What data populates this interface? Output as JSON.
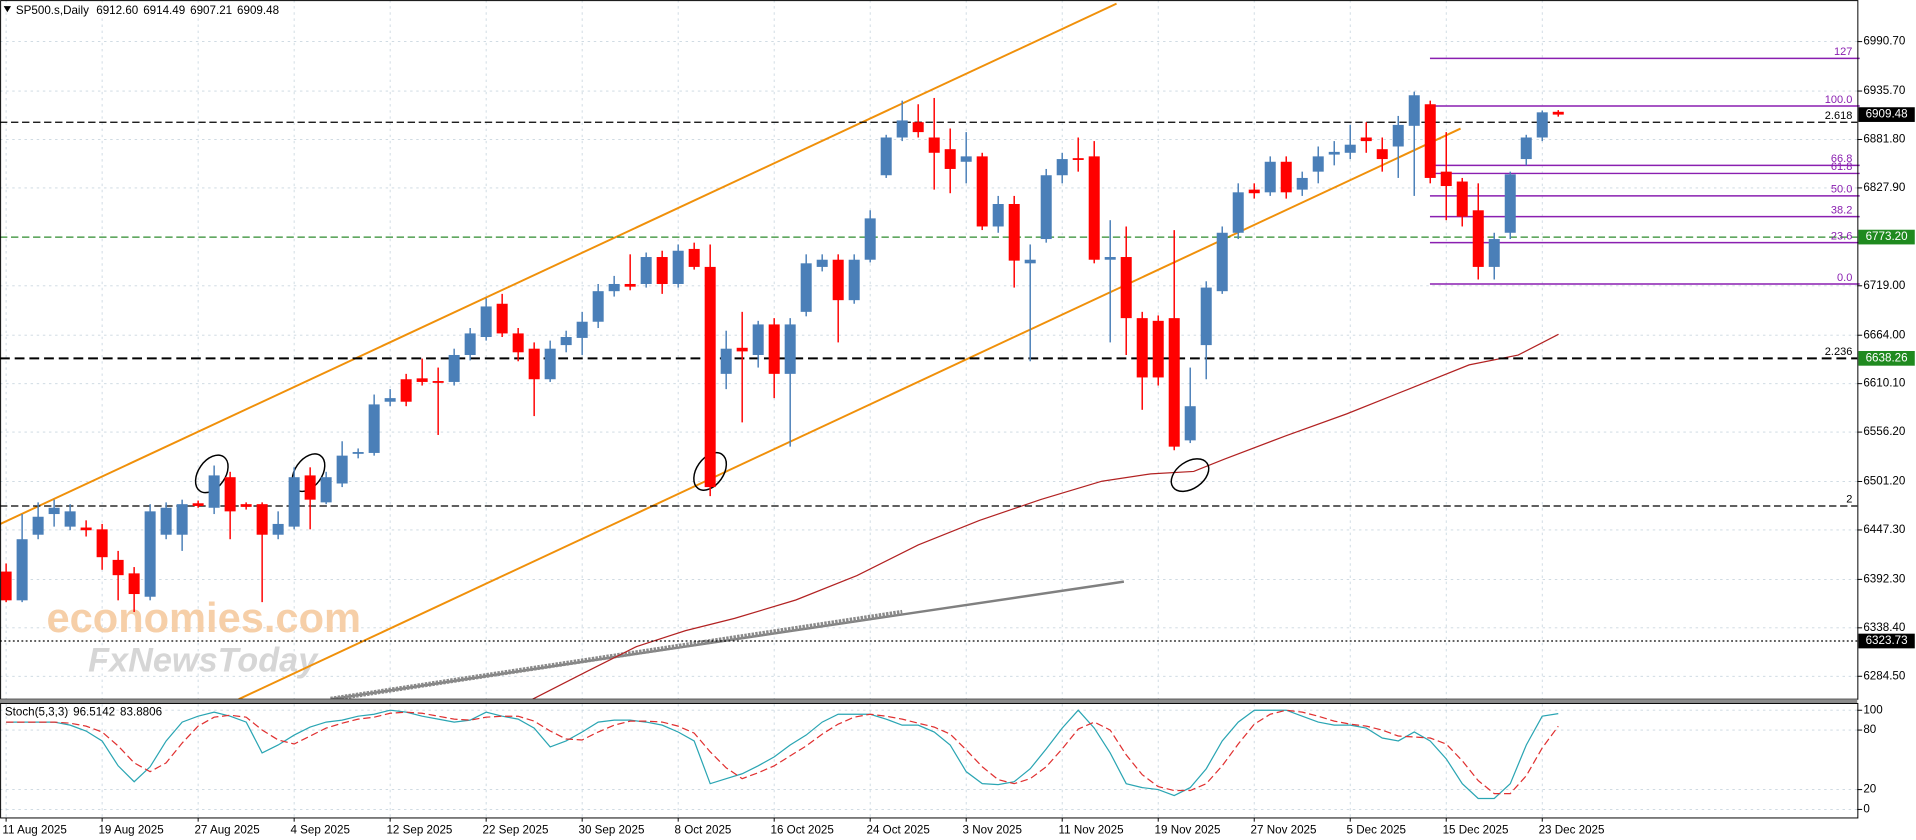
{
  "chart_data": {
    "type": "candlestick",
    "title": "SP500.s,Daily",
    "header": [
      "6912.60",
      "6914.49",
      "6907.21",
      "6909.48"
    ],
    "up_color": "#4a7fb8",
    "down_color": "#ff0000",
    "grid": true,
    "categories": [
      "11 Aug 2025",
      null,
      null,
      null,
      null,
      null,
      "19 Aug 2025",
      null,
      null,
      null,
      null,
      null,
      "27 Aug 2025",
      null,
      null,
      null,
      null,
      null,
      "4 Sep 2025",
      null,
      null,
      null,
      null,
      null,
      "12 Sep 2025",
      null,
      null,
      null,
      null,
      null,
      "22 Sep 2025",
      null,
      null,
      null,
      null,
      null,
      "30 Sep 2025",
      null,
      null,
      null,
      null,
      null,
      "8 Oct 2025",
      null,
      null,
      null,
      null,
      null,
      "16 Oct 2025",
      null,
      null,
      null,
      null,
      null,
      "24 Oct 2025",
      null,
      null,
      null,
      null,
      null,
      "3 Nov 2025",
      null,
      null,
      null,
      null,
      null,
      "11 Nov 2025",
      null,
      null,
      null,
      null,
      null,
      "19 Nov 2025",
      null,
      null,
      null,
      null,
      null,
      "27 Nov 2025",
      null,
      null,
      null,
      null,
      null,
      "5 Dec 2025",
      null,
      null,
      null,
      null,
      null,
      "15 Dec 2025",
      null,
      null,
      null,
      null,
      null,
      "23 Dec 2025",
      null
    ],
    "open": [
      6401,
      6369,
      6442,
      6465,
      6451,
      6450,
      6448,
      6414,
      6399,
      6373,
      6442,
      6442,
      6477,
      6472,
      6506,
      6476,
      6476,
      6442,
      6451,
      6508,
      6478,
      6499,
      6532,
      6533,
      6590,
      6615,
      6616,
      6613,
      6612,
      6642,
      6662,
      6699,
      6666,
      6649,
      6615,
      6653,
      6661,
      6679,
      6713,
      6721,
      6721,
      6751,
      6721,
      6760,
      6740,
      6621,
      6650,
      6642,
      6676,
      6621,
      6690,
      6740,
      6748,
      6703,
      6748,
      6842,
      6884,
      6901,
      6884,
      6871,
      6857,
      6863,
      6785,
      6810,
      6744,
      6771,
      6842,
      6861,
      6863,
      6748,
      6751,
      6683,
      6680,
      6683,
      6547,
      6653,
      6713,
      6778,
      6826,
      6823,
      6857,
      6826,
      6846,
      6865,
      6867,
      6884,
      6871,
      6874,
      6897,
      6921,
      6846,
      6835,
      6803,
      6740,
      6778,
      6860,
      6884,
      6912.6
    ],
    "high": [
      6410,
      6465,
      6478,
      6481,
      6476,
      6458,
      6454,
      6424,
      6406,
      6476,
      6478,
      6481,
      6480,
      6519,
      6512,
      6478,
      6478,
      6468,
      6517,
      6517,
      6512,
      6546,
      6538,
      6598,
      6604,
      6621,
      6638,
      6628,
      6649,
      6672,
      6705,
      6710,
      6672,
      6656,
      6658,
      6669,
      6690,
      6721,
      6730,
      6754,
      6756,
      6758,
      6765,
      6767,
      6765,
      6669,
      6690,
      6680,
      6683,
      6683,
      6754,
      6754,
      6754,
      6754,
      6803,
      6887,
      6925,
      6921,
      6928,
      6894,
      6890,
      6867,
      6819,
      6819,
      6765,
      6849,
      6867,
      6884,
      6880,
      6792,
      6785,
      6690,
      6686,
      6781,
      6628,
      6724,
      6785,
      6833,
      6833,
      6863,
      6863,
      6846,
      6874,
      6880,
      6898,
      6901,
      6884,
      6908,
      6935,
      6925,
      6890,
      6839,
      6833,
      6778,
      6846,
      6887,
      6914,
      6914.49
    ],
    "low": [
      6367,
      6367,
      6437,
      6451,
      6447,
      6440,
      6403,
      6369,
      6356,
      6369,
      6437,
      6424,
      6472,
      6465,
      6437,
      6470,
      6367,
      6437,
      6448,
      6448,
      6476,
      6495,
      6527,
      6530,
      6585,
      6585,
      6608,
      6553,
      6608,
      6636,
      6658,
      6662,
      6635,
      6574,
      6612,
      6645,
      6642,
      6672,
      6707,
      6714,
      6717,
      6710,
      6717,
      6737,
      6485,
      6604,
      6567,
      6628,
      6594,
      6540,
      6685,
      6735,
      6656,
      6699,
      6745,
      6839,
      6880,
      6884,
      6826,
      6822,
      6833,
      6781,
      6778,
      6717,
      6635,
      6767,
      6833,
      6846,
      6744,
      6656,
      6642,
      6581,
      6608,
      6536,
      6544,
      6615,
      6710,
      6771,
      6816,
      6819,
      6816,
      6819,
      6833,
      6853,
      6860,
      6867,
      6846,
      6839,
      6819,
      6833,
      6792,
      6785,
      6726,
      6726,
      6771,
      6853,
      6880,
      6907.21
    ],
    "close": [
      6369,
      6437,
      6462,
      6472,
      6468,
      6447,
      6417,
      6397,
      6376,
      6468,
      6472,
      6476,
      6474,
      6508,
      6468,
      6473,
      6442,
      6454,
      6506,
      6481,
      6506,
      6530,
      6534,
      6587,
      6594,
      6590,
      6612,
      6611,
      6642,
      6666,
      6696,
      6666,
      6645,
      6615,
      6649,
      6662,
      6679,
      6713,
      6721,
      6718,
      6751,
      6721,
      6758,
      6740,
      6495,
      6649,
      6646,
      6676,
      6621,
      6676,
      6744,
      6748,
      6703,
      6748,
      6794,
      6884,
      6903,
      6890,
      6867,
      6849,
      6863,
      6785,
      6810,
      6747,
      6748,
      6842,
      6860,
      6859,
      6748,
      6751,
      6683,
      6617,
      6617,
      6540,
      6585,
      6717,
      6778,
      6823,
      6822,
      6857,
      6823,
      6839,
      6863,
      6868,
      6876,
      6880,
      6860,
      6898,
      6931,
      6839,
      6830,
      6796,
      6740,
      6771,
      6843,
      6884,
      6912,
      6909.48
    ],
    "ylim": [
      6259,
      7037
    ],
    "yticks": [
      {
        "value": 6990.7,
        "label": "6990.70"
      },
      {
        "value": 6935.7,
        "label": "6935.70"
      },
      {
        "value": 6881.8,
        "label": "6881.80"
      },
      {
        "value": 6827.9,
        "label": "6827.90"
      },
      {
        "value": 6719,
        "label": "6719.00"
      },
      {
        "value": 6664,
        "label": "6664.00"
      },
      {
        "value": 6610.1,
        "label": "6610.10"
      },
      {
        "value": 6556.2,
        "label": "6556.20"
      },
      {
        "value": 6501.2,
        "label": "6501.20"
      },
      {
        "value": 6447.3,
        "label": "6447.30"
      },
      {
        "value": 6392.3,
        "label": "6392.30"
      },
      {
        "value": 6338.4,
        "label": "6338.40"
      },
      {
        "value": 6284.5,
        "label": "6284.50"
      }
    ],
    "levels": [
      {
        "value": 6901,
        "label": "2.618",
        "color": "#000000",
        "style": "dashed"
      },
      {
        "value": 6773.2,
        "color": "#2e8b2e",
        "style": "dashed"
      },
      {
        "value": 6638.26,
        "label": "2.236",
        "color": "#000000",
        "style": "bold-dashed"
      },
      {
        "value": 6474,
        "label": "2",
        "color": "#000000",
        "style": "dashed"
      },
      {
        "value": 6323.73,
        "color": "#000000",
        "style": "dotted"
      }
    ],
    "price_tags": [
      {
        "value": 6909.48,
        "label": "6909.48",
        "color": "#000000"
      },
      {
        "value": 6773.2,
        "label": "6773.20",
        "color": "#1f8a1f"
      },
      {
        "value": 6638.26,
        "label": "6638.26",
        "color": "#1f8a1f"
      },
      {
        "value": 6323.73,
        "label": "6323.73",
        "color": "#000000"
      }
    ],
    "fib": {
      "color": "#8a1fb0",
      "levels": [
        {
          "value": 6972,
          "label": "127"
        },
        {
          "value": 6919,
          "label": "100.0"
        },
        {
          "value": 6853,
          "label": "66.8"
        },
        {
          "value": 6844,
          "label": "61.8"
        },
        {
          "value": 6819,
          "label": "50.0"
        },
        {
          "value": 6796,
          "label": "38.2"
        },
        {
          "value": 6767,
          "label": "23.6"
        },
        {
          "value": 6721,
          "label": "0.0"
        }
      ]
    },
    "watermark": [
      "economies.com",
      "FxNewsToday"
    ],
    "indicator": {
      "type": "line",
      "title": "Stoch(5,3,3)",
      "header": [
        "96.5142",
        "83.8806"
      ],
      "ylim": [
        -8.6,
        106.2
      ],
      "yticks": [
        100,
        80,
        20,
        0
      ],
      "series": [
        {
          "color": "#2aa5b3",
          "style": "solid",
          "values": [
            88,
            88,
            88,
            88,
            85,
            79,
            69,
            44,
            28,
            43,
            69,
            88,
            94,
            98,
            94,
            88,
            57,
            65,
            75,
            83,
            88,
            90,
            94,
            96,
            100,
            98,
            94,
            91,
            88,
            90,
            98,
            94,
            91,
            82,
            63,
            69,
            78,
            88,
            90,
            90,
            88,
            85,
            78,
            69,
            26,
            31,
            36,
            44,
            53,
            65,
            75,
            88,
            96,
            96,
            96,
            91,
            85,
            85,
            78,
            65,
            38,
            26,
            25,
            28,
            41,
            61,
            82,
            100,
            82,
            57,
            26,
            22,
            20,
            14,
            22,
            41,
            69,
            88,
            100,
            100,
            100,
            94,
            88,
            85,
            85,
            82,
            72,
            69,
            78,
            69,
            51,
            26,
            11,
            11,
            26,
            65,
            94,
            96.5142
          ]
        },
        {
          "color": "#e03030",
          "style": "dashed",
          "values": [
            88,
            88,
            88,
            88,
            87,
            84,
            78,
            64,
            47,
            38,
            47,
            67,
            84,
            93,
            95,
            93,
            80,
            70,
            66,
            74,
            82,
            87,
            91,
            93,
            97,
            98,
            97,
            94,
            91,
            90,
            93,
            94,
            94,
            89,
            79,
            71,
            70,
            78,
            85,
            89,
            89,
            88,
            84,
            77,
            58,
            42,
            31,
            37,
            44,
            54,
            64,
            76,
            86,
            93,
            96,
            94,
            91,
            87,
            83,
            76,
            60,
            43,
            30,
            26,
            31,
            43,
            61,
            81,
            88,
            80,
            55,
            35,
            23,
            19,
            19,
            26,
            44,
            66,
            86,
            96,
            100,
            98,
            94,
            89,
            86,
            84,
            80,
            74,
            73,
            72,
            66,
            49,
            29,
            16,
            16,
            34,
            62,
            83.8806
          ]
        }
      ]
    }
  }
}
